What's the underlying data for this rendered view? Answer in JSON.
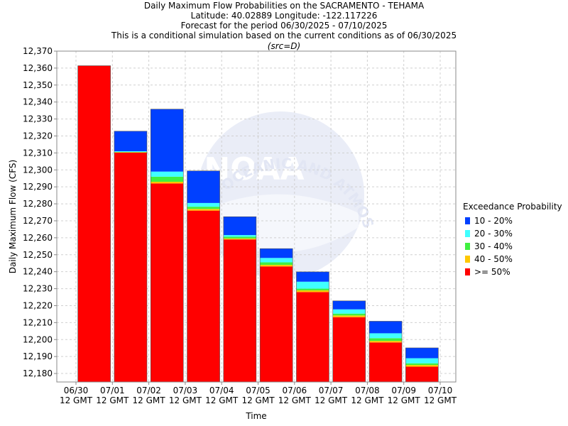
{
  "titles": {
    "line1": "Daily Maximum Flow Probabilities on the SACRAMENTO - TEHAMA",
    "line2": "Latitude: 40.02889 Longitude: -122.117226",
    "line3": "Forecast for the period 06/30/2025 - 07/10/2025",
    "line4": "This is a conditional simulation based on the current conditions as of 06/30/2025",
    "line5": "(src=D)"
  },
  "watermark": {
    "logo_text": "NOAA",
    "ring_text": "NATIONAL OCEANIC AND ATMOSPHERIC ADMINISTRATION"
  },
  "chart_data": {
    "type": "bar",
    "stacked": true,
    "xlabel": "Time",
    "ylabel": "Daily Maximum Flow (CFS)",
    "ylim": [
      12175,
      12370
    ],
    "y_ticks": [
      12180,
      12190,
      12200,
      12210,
      12220,
      12230,
      12240,
      12250,
      12260,
      12270,
      12280,
      12290,
      12300,
      12310,
      12320,
      12330,
      12340,
      12350,
      12360,
      12370
    ],
    "y_tick_labels": [
      "12,180",
      "12,190",
      "12,200",
      "12,210",
      "12,220",
      "12,230",
      "12,240",
      "12,250",
      "12,260",
      "12,270",
      "12,280",
      "12,290",
      "12,300",
      "12,310",
      "12,320",
      "12,330",
      "12,340",
      "12,350",
      "12,360",
      "12,370"
    ],
    "x_tick_labels": [
      [
        "06/30",
        "12 GMT"
      ],
      [
        "07/01",
        "12 GMT"
      ],
      [
        "07/02",
        "12 GMT"
      ],
      [
        "07/03",
        "12 GMT"
      ],
      [
        "07/04",
        "12 GMT"
      ],
      [
        "07/05",
        "12 GMT"
      ],
      [
        "07/06",
        "12 GMT"
      ],
      [
        "07/07",
        "12 GMT"
      ],
      [
        "07/08",
        "12 GMT"
      ],
      [
        "07/09",
        "12 GMT"
      ],
      [
        "07/10",
        "12 GMT"
      ]
    ],
    "grid": true,
    "legend_position": "right",
    "legend_title": "Exceedance Probability",
    "series": [
      {
        "name": ">= 50%",
        "color": "#ff0000"
      },
      {
        "name": "40 - 50%",
        "color": "#ffc800"
      },
      {
        "name": "30 - 40%",
        "color": "#40f040"
      },
      {
        "name": "20 - 30%",
        "color": "#40ffff"
      },
      {
        "name": "10 - 20%",
        "color": "#0040ff"
      }
    ],
    "bars": [
      {
        "date": "06/30",
        "levels": [
          12361.4,
          12361.4,
          12361.4,
          12361.4,
          12361.4
        ]
      },
      {
        "date": "07/01",
        "levels": [
          12310.2,
          12310.4,
          12310.6,
          12311.0,
          12322.8
        ]
      },
      {
        "date": "07/02",
        "levels": [
          12292.0,
          12293.0,
          12296.0,
          12299.0,
          12335.8
        ]
      },
      {
        "date": "07/03",
        "levels": [
          12276.0,
          12277.0,
          12278.3,
          12280.5,
          12299.4
        ]
      },
      {
        "date": "07/04",
        "levels": [
          12259.0,
          12259.6,
          12260.6,
          12261.6,
          12272.4
        ]
      },
      {
        "date": "07/05",
        "levels": [
          12243.1,
          12244.0,
          12245.5,
          12248.1,
          12253.6
        ]
      },
      {
        "date": "07/06",
        "levels": [
          12228.0,
          12229.0,
          12230.0,
          12234.1,
          12239.9
        ]
      },
      {
        "date": "07/07",
        "levels": [
          12213.2,
          12214.2,
          12215.3,
          12217.8,
          12222.8
        ]
      },
      {
        "date": "07/08",
        "levels": [
          12198.3,
          12199.2,
          12200.8,
          12203.7,
          12210.8
        ]
      },
      {
        "date": "07/09",
        "levels": [
          12184.0,
          12185.0,
          12186.0,
          12189.0,
          12195.1
        ]
      }
    ]
  }
}
